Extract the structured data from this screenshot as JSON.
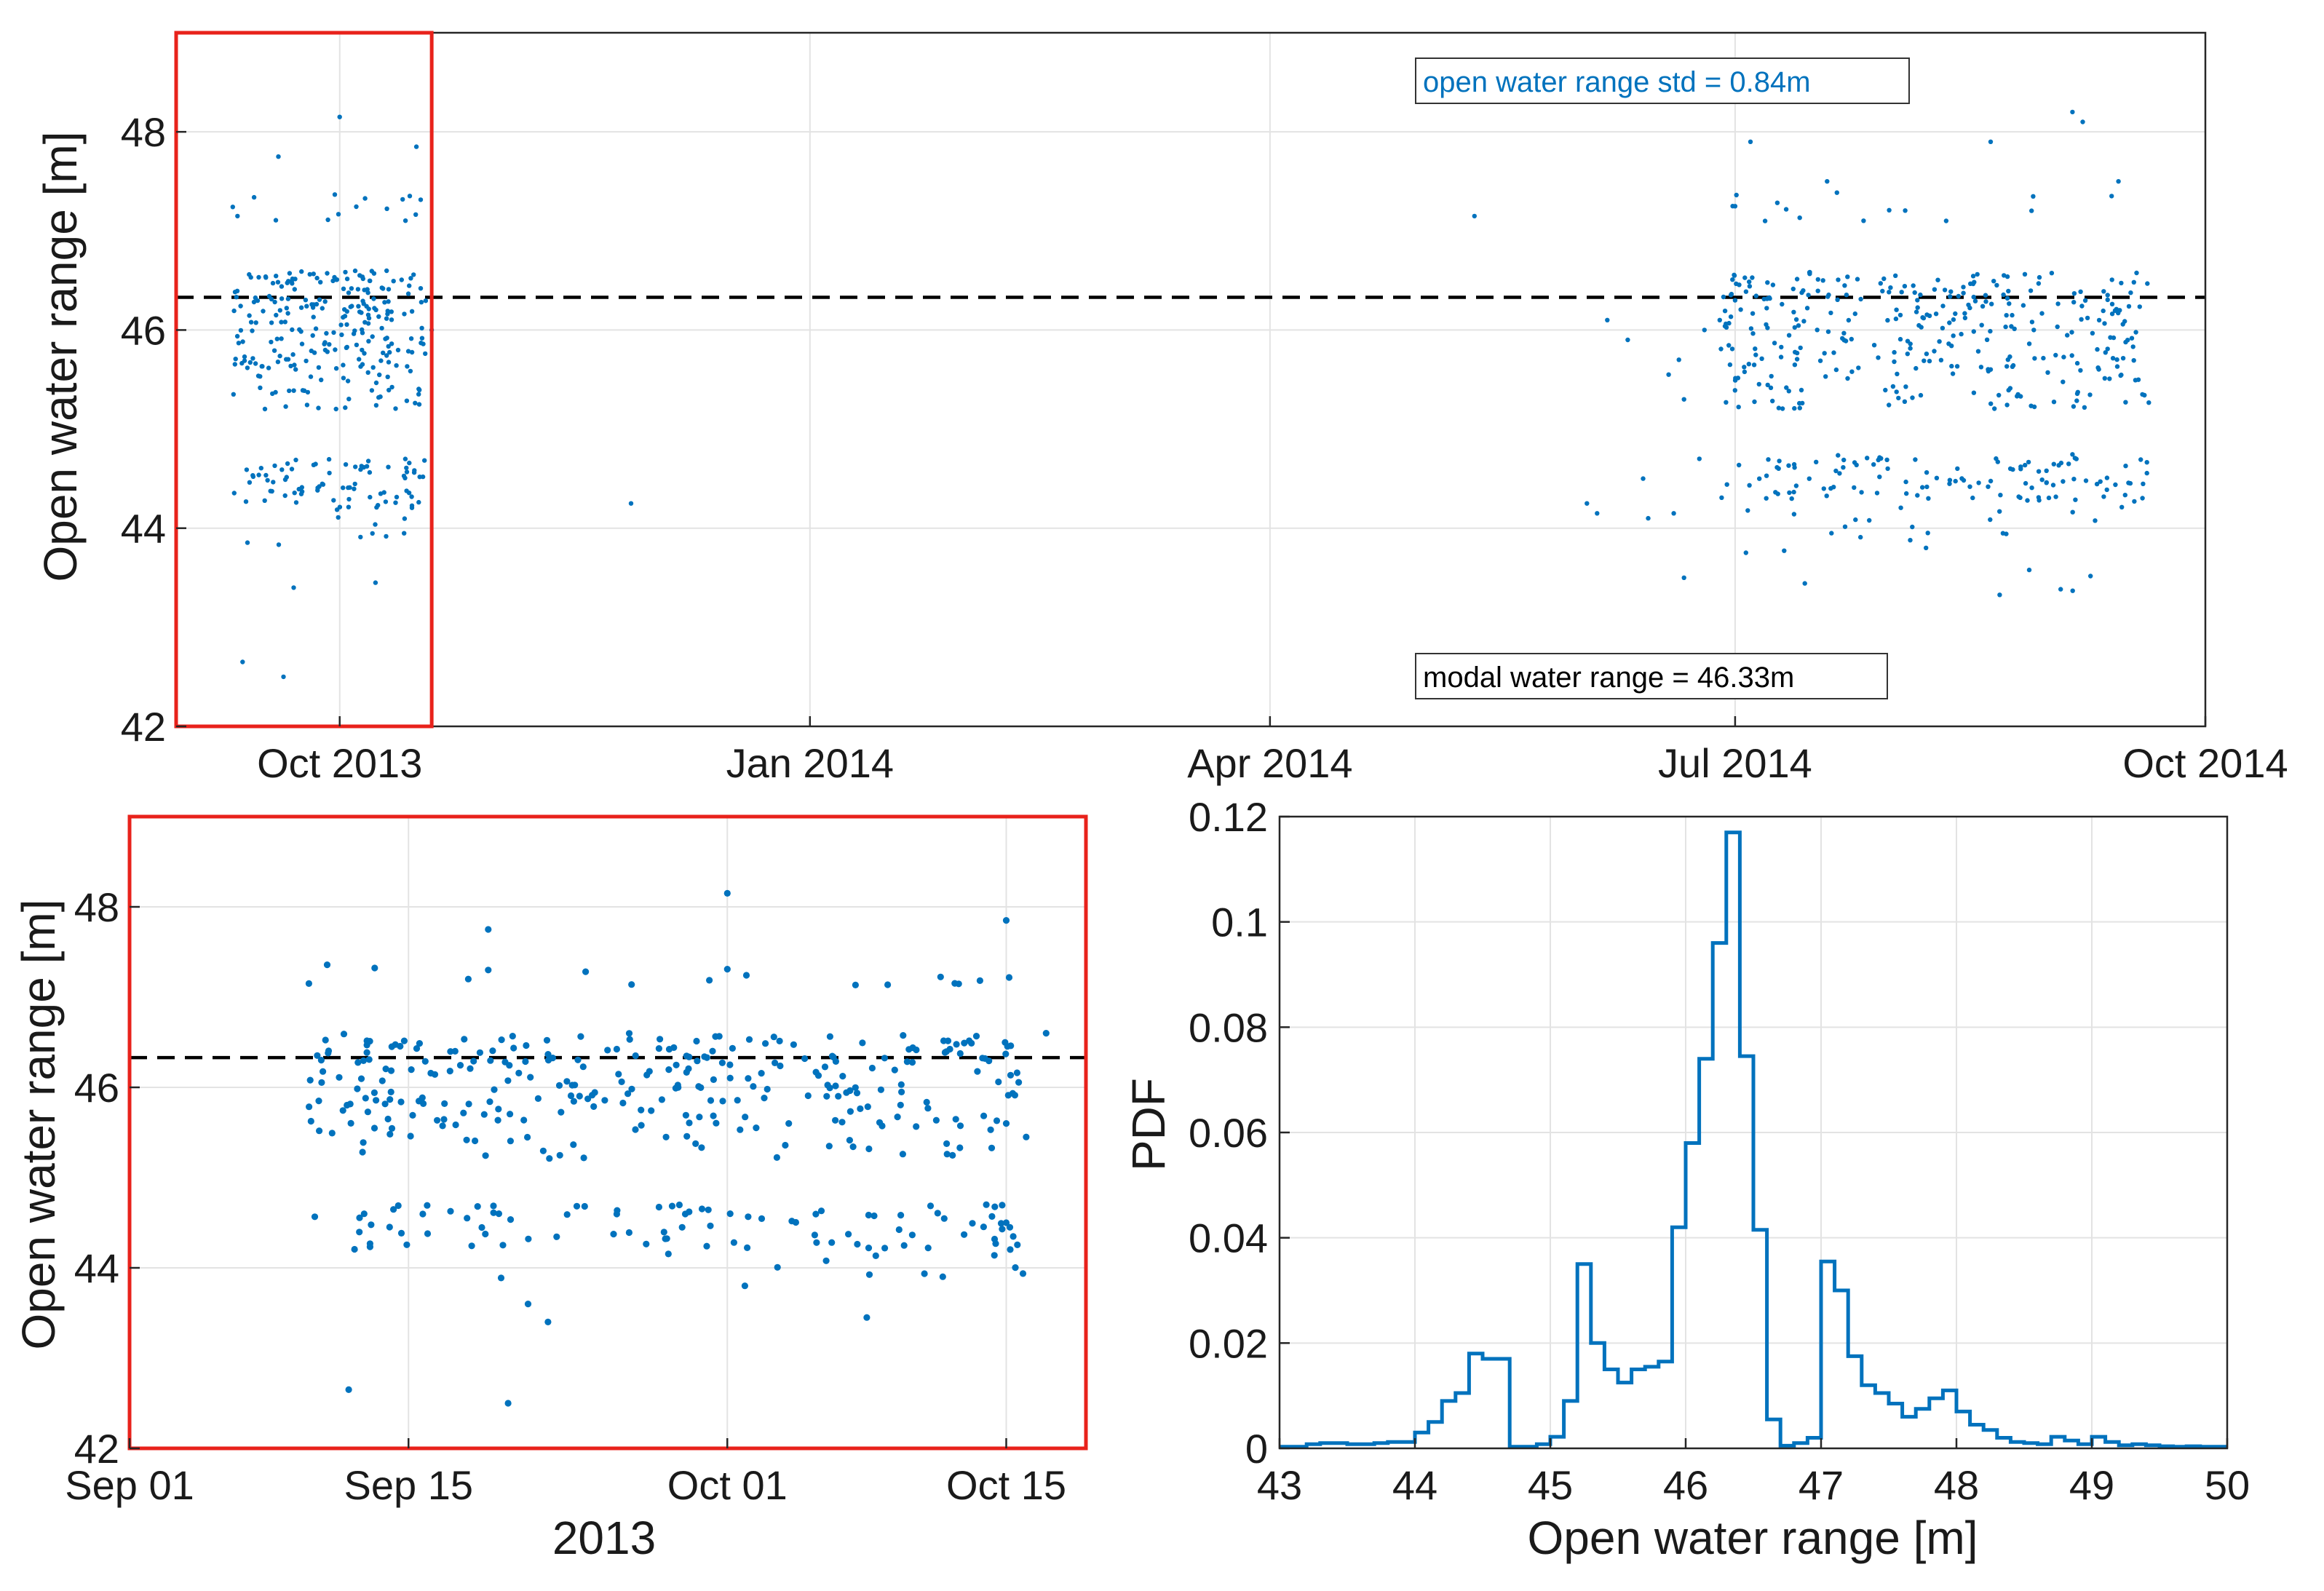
{
  "chart_data": [
    {
      "id": "top",
      "type": "scatter",
      "ylabel": "Open water range [m]",
      "xlabel": "",
      "ylim": [
        42,
        49
      ],
      "yticks": [
        42,
        44,
        46,
        48
      ],
      "xlim": [
        "2013-08-30",
        "2014-10-01"
      ],
      "xticks": [
        {
          "date": "2013-10-01",
          "label": "Oct 2013"
        },
        {
          "date": "2014-01-01",
          "label": "Jan 2014"
        },
        {
          "date": "2014-04-01",
          "label": "Apr 2014"
        },
        {
          "date": "2014-07-01",
          "label": "Jul 2014"
        },
        {
          "date": "2014-10-01",
          "label": "Oct 2014"
        }
      ],
      "grid": true,
      "modal_line": 46.33,
      "highlight_box": {
        "from": "2013-08-30",
        "to": "2013-10-19",
        "color": "#e8221b"
      },
      "annotations": [
        {
          "text": "open water range std = 0.84m",
          "color": "#0072bd",
          "position": "top-right"
        },
        {
          "text": "modal water range = 46.33m",
          "color": "#000000",
          "position": "bottom-right"
        }
      ],
      "series_color": "#0072bd",
      "clusters": [
        {
          "from": "2013-09-10",
          "to": "2013-10-18",
          "ranges": [
            [
              46.0,
              46.6,
              130
            ],
            [
              45.6,
              46.0,
              80
            ],
            [
              45.2,
              45.6,
              40
            ],
            [
              44.2,
              44.7,
              80
            ],
            [
              43.8,
              44.2,
              10
            ],
            [
              47.1,
              47.4,
              14
            ]
          ]
        },
        {
          "from": "2014-06-28",
          "to": "2014-09-20",
          "ranges": [
            [
              46.0,
              46.6,
              170
            ],
            [
              45.6,
              46.0,
              90
            ],
            [
              45.2,
              45.6,
              70
            ],
            [
              44.3,
              44.75,
              110
            ],
            [
              43.9,
              44.3,
              22
            ],
            [
              43.3,
              43.9,
              10
            ],
            [
              47.1,
              47.4,
              14
            ]
          ]
        }
      ],
      "points": [
        {
          "x": "2013-09-11",
          "y": 47.15
        },
        {
          "x": "2013-09-19",
          "y": 47.75
        },
        {
          "x": "2013-10-01",
          "y": 48.15
        },
        {
          "x": "2013-10-16",
          "y": 47.85
        },
        {
          "x": "2013-09-12",
          "y": 42.65
        },
        {
          "x": "2013-09-20",
          "y": 42.5
        },
        {
          "x": "2013-09-22",
          "y": 43.4
        },
        {
          "x": "2013-10-08",
          "y": 43.45
        },
        {
          "x": "2013-10-19",
          "y": 46.0
        },
        {
          "x": "2013-11-27",
          "y": 44.25
        },
        {
          "x": "2014-05-11",
          "y": 47.15
        },
        {
          "x": "2014-06-02",
          "y": 44.25
        },
        {
          "x": "2014-06-04",
          "y": 44.15
        },
        {
          "x": "2014-06-06",
          "y": 46.1
        },
        {
          "x": "2014-06-10",
          "y": 45.9
        },
        {
          "x": "2014-06-13",
          "y": 44.5
        },
        {
          "x": "2014-06-14",
          "y": 44.1
        },
        {
          "x": "2014-06-18",
          "y": 45.55
        },
        {
          "x": "2014-06-19",
          "y": 44.15
        },
        {
          "x": "2014-06-20",
          "y": 45.7
        },
        {
          "x": "2014-06-21",
          "y": 43.5
        },
        {
          "x": "2014-06-21",
          "y": 45.3
        },
        {
          "x": "2014-06-24",
          "y": 44.7
        },
        {
          "x": "2014-06-25",
          "y": 46.0
        },
        {
          "x": "2014-06-28",
          "y": 46.1
        },
        {
          "x": "2014-06-30",
          "y": 45.65
        },
        {
          "x": "2014-07-01",
          "y": 47.25
        },
        {
          "x": "2014-07-01",
          "y": 46.3
        },
        {
          "x": "2014-07-04",
          "y": 47.9
        },
        {
          "x": "2014-07-19",
          "y": 47.5
        },
        {
          "x": "2014-08-20",
          "y": 47.9
        },
        {
          "x": "2014-09-05",
          "y": 48.2
        },
        {
          "x": "2014-09-07",
          "y": 48.1
        },
        {
          "x": "2014-09-14",
          "y": 47.5
        }
      ]
    },
    {
      "id": "inset",
      "type": "scatter",
      "ylabel": "Open water range [m]",
      "xlabel": "2013",
      "ylim": [
        42,
        49
      ],
      "yticks": [
        42,
        44,
        46,
        48
      ],
      "xlim": [
        "2013-09-01",
        "2013-10-19"
      ],
      "xticks": [
        {
          "date": "2013-09-01",
          "label": "Sep 01"
        },
        {
          "date": "2013-09-15",
          "label": "Sep 15"
        },
        {
          "date": "2013-10-01",
          "label": "Oct 01"
        },
        {
          "date": "2013-10-15",
          "label": "Oct 15"
        }
      ],
      "grid": true,
      "modal_line": 46.33,
      "frame_color": "#e8221b",
      "series_color": "#0072bd",
      "clusters": [
        {
          "from": "2013-09-10",
          "to": "2013-10-16",
          "ranges": [
            [
              46.0,
              46.6,
              150
            ],
            [
              45.6,
              46.0,
              90
            ],
            [
              45.2,
              45.6,
              45
            ],
            [
              44.2,
              44.7,
              90
            ],
            [
              43.8,
              44.2,
              12
            ],
            [
              47.1,
              47.4,
              14
            ]
          ]
        }
      ],
      "points": [
        {
          "x": "2013-09-10",
          "y": 47.15
        },
        {
          "x": "2013-09-19",
          "y": 47.75
        },
        {
          "x": "2013-09-19",
          "y": 47.3
        },
        {
          "x": "2013-09-18",
          "y": 47.2
        },
        {
          "x": "2013-10-01",
          "y": 48.15
        },
        {
          "x": "2013-10-15",
          "y": 47.85
        },
        {
          "x": "2013-09-12",
          "y": 42.65
        },
        {
          "x": "2013-09-20",
          "y": 42.5
        },
        {
          "x": "2013-09-22",
          "y": 43.4
        },
        {
          "x": "2013-09-21",
          "y": 43.6
        },
        {
          "x": "2013-10-08",
          "y": 43.45
        },
        {
          "x": "2013-10-17",
          "y": 46.6
        },
        {
          "x": "2013-10-16",
          "y": 45.45
        },
        {
          "x": "2013-10-14",
          "y": 44.7
        },
        {
          "x": "2013-10-15",
          "y": 44.5
        },
        {
          "x": "2013-10-15",
          "y": 45.6
        }
      ]
    },
    {
      "id": "pdf",
      "type": "line",
      "style": "stairs",
      "xlabel": "Open water range [m]",
      "ylabel": "PDF",
      "xlim": [
        43,
        50
      ],
      "ylim": [
        0,
        0.12
      ],
      "xticks": [
        43,
        44,
        45,
        46,
        47,
        48,
        49,
        50
      ],
      "yticks": [
        0,
        0.02,
        0.04,
        0.06,
        0.08,
        0.1,
        0.12
      ],
      "ytick_labels": [
        "0",
        "0.02",
        "0.04",
        "0.06",
        "0.08",
        "0.1",
        "0.12"
      ],
      "grid": true,
      "series_color": "#0072bd",
      "edges": [
        43.0,
        43.1,
        43.2,
        43.3,
        43.4,
        43.5,
        43.6,
        43.7,
        43.8,
        43.9,
        44.0,
        44.1,
        44.2,
        44.3,
        44.4,
        44.5,
        44.6,
        44.7,
        44.8,
        44.9,
        45.0,
        45.1,
        45.2,
        45.3,
        45.4,
        45.5,
        45.6,
        45.7,
        45.8,
        45.9,
        46.0,
        46.1,
        46.2,
        46.3,
        46.4,
        46.5,
        46.6,
        46.7,
        46.8,
        46.9,
        47.0,
        47.1,
        47.2,
        47.3,
        47.4,
        47.5,
        47.6,
        47.7,
        47.8,
        47.9,
        48.0,
        48.1,
        48.2,
        48.3,
        48.4,
        48.5,
        48.6,
        48.7,
        48.8,
        48.9,
        49.0,
        49.1,
        49.2,
        49.3,
        49.4,
        49.5,
        49.6,
        49.7,
        49.8,
        49.9,
        50.0
      ],
      "values": [
        0.0003,
        0.0003,
        0.0008,
        0.001,
        0.001,
        0.0008,
        0.0008,
        0.001,
        0.0012,
        0.0012,
        0.003,
        0.005,
        0.009,
        0.0105,
        0.018,
        0.017,
        0.017,
        0.0003,
        0.0003,
        0.0008,
        0.0022,
        0.009,
        0.035,
        0.02,
        0.015,
        0.0125,
        0.015,
        0.0155,
        0.0165,
        0.042,
        0.058,
        0.074,
        0.096,
        0.117,
        0.0745,
        0.0415,
        0.0055,
        0.0005,
        0.001,
        0.002,
        0.0355,
        0.03,
        0.0175,
        0.012,
        0.0105,
        0.0085,
        0.006,
        0.0075,
        0.0095,
        0.011,
        0.007,
        0.0045,
        0.0035,
        0.002,
        0.0012,
        0.001,
        0.0008,
        0.0022,
        0.0015,
        0.0008,
        0.0022,
        0.0012,
        0.0006,
        0.0008,
        0.0006,
        0.0004,
        0.0003,
        0.0004,
        0.0003,
        0.0003
      ]
    }
  ]
}
